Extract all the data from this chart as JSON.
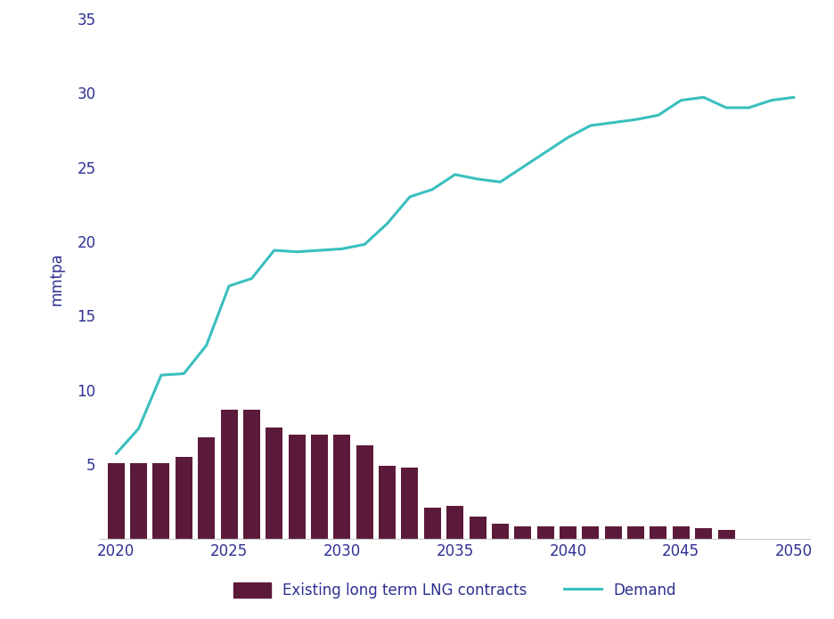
{
  "years": [
    2020,
    2021,
    2022,
    2023,
    2024,
    2025,
    2026,
    2027,
    2028,
    2029,
    2030,
    2031,
    2032,
    2033,
    2034,
    2035,
    2036,
    2037,
    2038,
    2039,
    2040,
    2041,
    2042,
    2043,
    2044,
    2045,
    2046,
    2047,
    2048,
    2049,
    2050
  ],
  "bar_values": [
    5.1,
    5.1,
    5.1,
    5.5,
    6.8,
    8.7,
    8.7,
    7.5,
    7.0,
    7.0,
    7.0,
    6.3,
    4.9,
    4.8,
    2.1,
    2.2,
    1.5,
    1.0,
    0.8,
    0.8,
    0.8,
    0.8,
    0.8,
    0.8,
    0.8,
    0.8,
    0.7,
    0.6,
    0.0,
    0.0,
    0.0
  ],
  "demand_values": [
    5.7,
    7.4,
    11.0,
    11.1,
    13.0,
    17.0,
    17.5,
    19.4,
    19.3,
    19.4,
    19.5,
    19.8,
    21.2,
    23.0,
    23.5,
    24.5,
    24.2,
    24.0,
    25.0,
    26.0,
    27.0,
    27.8,
    28.0,
    28.2,
    28.5,
    29.5,
    29.7,
    29.0,
    29.0,
    29.5,
    29.7
  ],
  "bar_color": "#5C1A3A",
  "demand_color": "#3ABFBF",
  "ylabel": "mmtpa",
  "ylim": [
    0,
    35
  ],
  "yticks": [
    0,
    5,
    10,
    15,
    20,
    25,
    30,
    35
  ],
  "xlim": [
    2019.3,
    2050.7
  ],
  "xticks": [
    2020,
    2025,
    2030,
    2035,
    2040,
    2045,
    2050
  ],
  "bar_label": "Existing long term LNG contracts",
  "demand_label": "Demand",
  "axis_color": "#2E3192",
  "background_color": "#FFFFFF",
  "bar_width": 0.75
}
